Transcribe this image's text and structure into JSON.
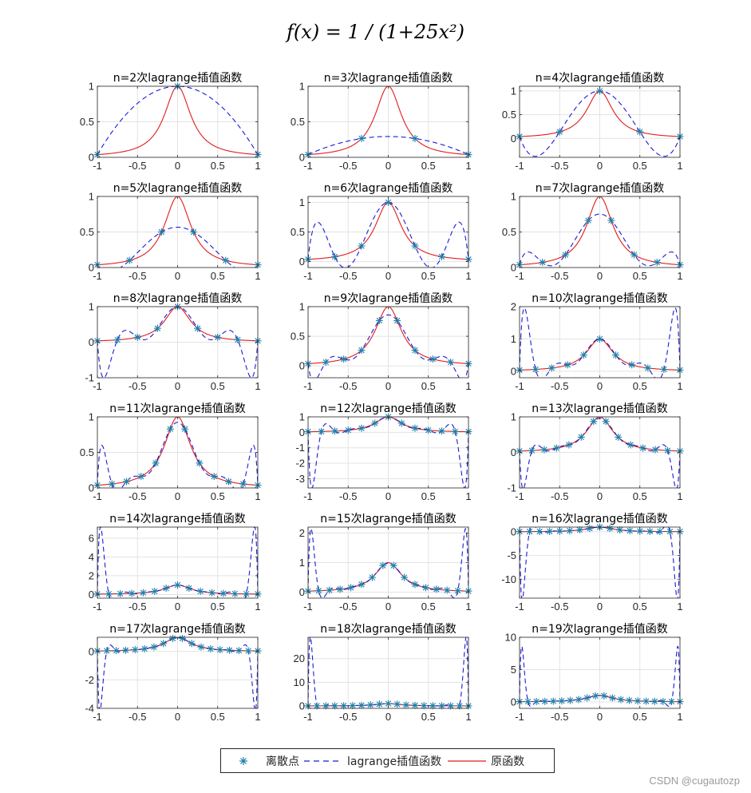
{
  "suptitle": "f(x) = 1 / (1+25x²)",
  "watermark": "CSDN @cugautozp",
  "legend": {
    "position": "bottom-center",
    "entries": [
      {
        "label": "离散点",
        "style": "marker-asterisk",
        "color": "#1f7fa8"
      },
      {
        "label": "lagrange插值函数",
        "style": "dashed-line",
        "color": "#1a1ad9"
      },
      {
        "label": "原函数",
        "style": "solid-line",
        "color": "#e01c1c"
      }
    ]
  },
  "colors": {
    "original": "#e01c1c",
    "lagrange": "#1a1ad9",
    "nodes": "#1f7fa8",
    "grid": "#e3e3e3",
    "axis": "#262626"
  },
  "chart_data": [
    {
      "type": "line",
      "title": "n=2次lagrange插值函数",
      "n": 2,
      "xlim": [
        -1,
        1
      ],
      "ylim": [
        0,
        1
      ],
      "xticks": [
        "-1",
        "-0.5",
        "0",
        "0.5",
        "1"
      ],
      "yticks": [
        "0",
        "0.5",
        "1"
      ],
      "yticks_values": [
        0,
        0.5,
        1
      ]
    },
    {
      "type": "line",
      "title": "n=3次lagrange插值函数",
      "n": 3,
      "xlim": [
        -1,
        1
      ],
      "ylim": [
        0,
        1
      ],
      "xticks": [
        "-1",
        "-0.5",
        "0",
        "0.5",
        "1"
      ],
      "yticks": [
        "0",
        "0.5",
        "1"
      ],
      "yticks_values": [
        0,
        0.5,
        1
      ]
    },
    {
      "type": "line",
      "title": "n=4次lagrange插值函数",
      "n": 4,
      "xlim": [
        -1,
        1
      ],
      "ylim": [
        -0.4,
        1.1
      ],
      "xticks": [
        "-1",
        "-0.5",
        "0",
        "0.5",
        "1"
      ],
      "yticks": [
        "0",
        "0.5",
        "1"
      ],
      "yticks_values": [
        0,
        0.5,
        1
      ]
    },
    {
      "type": "line",
      "title": "n=5次lagrange插值函数",
      "n": 5,
      "xlim": [
        -1,
        1
      ],
      "ylim": [
        0,
        1
      ],
      "xticks": [
        "-1",
        "-0.5",
        "0",
        "0.5",
        "1"
      ],
      "yticks": [
        "0",
        "0.5",
        "1"
      ],
      "yticks_values": [
        0,
        0.5,
        1
      ]
    },
    {
      "type": "line",
      "title": "n=6次lagrange插值函数",
      "n": 6,
      "xlim": [
        -1,
        1
      ],
      "ylim": [
        -0.1,
        1.1
      ],
      "xticks": [
        "-1",
        "-0.5",
        "0",
        "0.5",
        "1"
      ],
      "yticks": [
        "0",
        "0.5",
        "1"
      ],
      "yticks_values": [
        0,
        0.5,
        1
      ]
    },
    {
      "type": "line",
      "title": "n=7次lagrange插值函数",
      "n": 7,
      "xlim": [
        -1,
        1
      ],
      "ylim": [
        0,
        1
      ],
      "xticks": [
        "-1",
        "-0.5",
        "0",
        "0.5",
        "1"
      ],
      "yticks": [
        "0",
        "0.5",
        "1"
      ],
      "yticks_values": [
        0,
        0.5,
        1
      ]
    },
    {
      "type": "line",
      "title": "n=8次lagrange插值函数",
      "n": 8,
      "xlim": [
        -1,
        1
      ],
      "ylim": [
        -1,
        1
      ],
      "xticks": [
        "-1",
        "-0.5",
        "0",
        "0.5",
        "1"
      ],
      "yticks": [
        "-1",
        "0",
        "1"
      ],
      "yticks_values": [
        -1,
        0,
        1
      ]
    },
    {
      "type": "line",
      "title": "n=9次lagrange插值函数",
      "n": 9,
      "xlim": [
        -1,
        1
      ],
      "ylim": [
        -0.2,
        1
      ],
      "xticks": [
        "-1",
        "-0.5",
        "0",
        "0.5",
        "1"
      ],
      "yticks": [
        "0",
        "0.5",
        "1"
      ],
      "yticks_values": [
        0,
        0.5,
        1
      ]
    },
    {
      "type": "line",
      "title": "n=10次lagrange插值函数",
      "n": 10,
      "xlim": [
        -1,
        1
      ],
      "ylim": [
        -0.2,
        2
      ],
      "xticks": [
        "-1",
        "-0.5",
        "0",
        "0.5",
        "1"
      ],
      "yticks": [
        "0",
        "1",
        "2"
      ],
      "yticks_values": [
        0,
        1,
        2
      ]
    },
    {
      "type": "line",
      "title": "n=11次lagrange插值函数",
      "n": 11,
      "xlim": [
        -1,
        1
      ],
      "ylim": [
        0,
        1
      ],
      "xticks": [
        "-1",
        "-0.5",
        "0",
        "0.5",
        "1"
      ],
      "yticks": [
        "0",
        "0.5",
        "1"
      ],
      "yticks_values": [
        0,
        0.5,
        1
      ]
    },
    {
      "type": "line",
      "title": "n=12次lagrange插值函数",
      "n": 12,
      "xlim": [
        -1,
        1
      ],
      "ylim": [
        -3.6,
        1
      ],
      "xticks": [
        "-1",
        "-0.5",
        "0",
        "0.5",
        "1"
      ],
      "yticks": [
        "-3",
        "-2",
        "-1",
        "0",
        "1"
      ],
      "yticks_values": [
        -3,
        -2,
        -1,
        0,
        1
      ]
    },
    {
      "type": "line",
      "title": "n=13次lagrange插值函数",
      "n": 13,
      "xlim": [
        -1,
        1
      ],
      "ylim": [
        -1,
        1
      ],
      "xticks": [
        "-1",
        "-0.5",
        "0",
        "0.5",
        "1"
      ],
      "yticks": [
        "-1",
        "0",
        "1"
      ],
      "yticks_values": [
        -1,
        0,
        1
      ]
    },
    {
      "type": "line",
      "title": "n=14次lagrange插值函数",
      "n": 14,
      "xlim": [
        -1,
        1
      ],
      "ylim": [
        -0.4,
        7.2
      ],
      "xticks": [
        "-1",
        "-0.5",
        "0",
        "0.5",
        "1"
      ],
      "yticks": [
        "0",
        "2",
        "4",
        "6"
      ],
      "yticks_values": [
        0,
        2,
        4,
        6
      ]
    },
    {
      "type": "line",
      "title": "n=15次lagrange插值函数",
      "n": 15,
      "xlim": [
        -1,
        1
      ],
      "ylim": [
        -0.2,
        2.2
      ],
      "xticks": [
        "-1",
        "-0.5",
        "0",
        "0.5",
        "1"
      ],
      "yticks": [
        "0",
        "1",
        "2"
      ],
      "yticks_values": [
        0,
        1,
        2
      ]
    },
    {
      "type": "line",
      "title": "n=16次lagrange插值函数",
      "n": 16,
      "xlim": [
        -1,
        1
      ],
      "ylim": [
        -14,
        1
      ],
      "xticks": [
        "-1",
        "-0.5",
        "0",
        "0.5",
        "1"
      ],
      "yticks": [
        "-10",
        "-5",
        "0"
      ],
      "yticks_values": [
        -10,
        -5,
        0
      ]
    },
    {
      "type": "line",
      "title": "n=17次lagrange插值函数",
      "n": 17,
      "xlim": [
        -1,
        1
      ],
      "ylim": [
        -4,
        1
      ],
      "xticks": [
        "-1",
        "-0.5",
        "0",
        "0.5",
        "1"
      ],
      "yticks": [
        "-4",
        "-2",
        "0"
      ],
      "yticks_values": [
        -4,
        -2,
        0
      ]
    },
    {
      "type": "line",
      "title": "n=18次lagrange插值函数",
      "n": 18,
      "xlim": [
        -1,
        1
      ],
      "ylim": [
        -1,
        29
      ],
      "xticks": [
        "-1",
        "-0.5",
        "0",
        "0.5",
        "1"
      ],
      "yticks": [
        "0",
        "10",
        "20"
      ],
      "yticks_values": [
        0,
        10,
        20
      ]
    },
    {
      "type": "line",
      "title": "n=19次lagrange插值函数",
      "n": 19,
      "xlim": [
        -1,
        1
      ],
      "ylim": [
        -1,
        10
      ],
      "xticks": [
        "-1",
        "-0.5",
        "0",
        "0.5",
        "1"
      ],
      "yticks": [
        "0",
        "5",
        "10"
      ],
      "yticks_values": [
        0,
        5,
        10
      ]
    }
  ]
}
